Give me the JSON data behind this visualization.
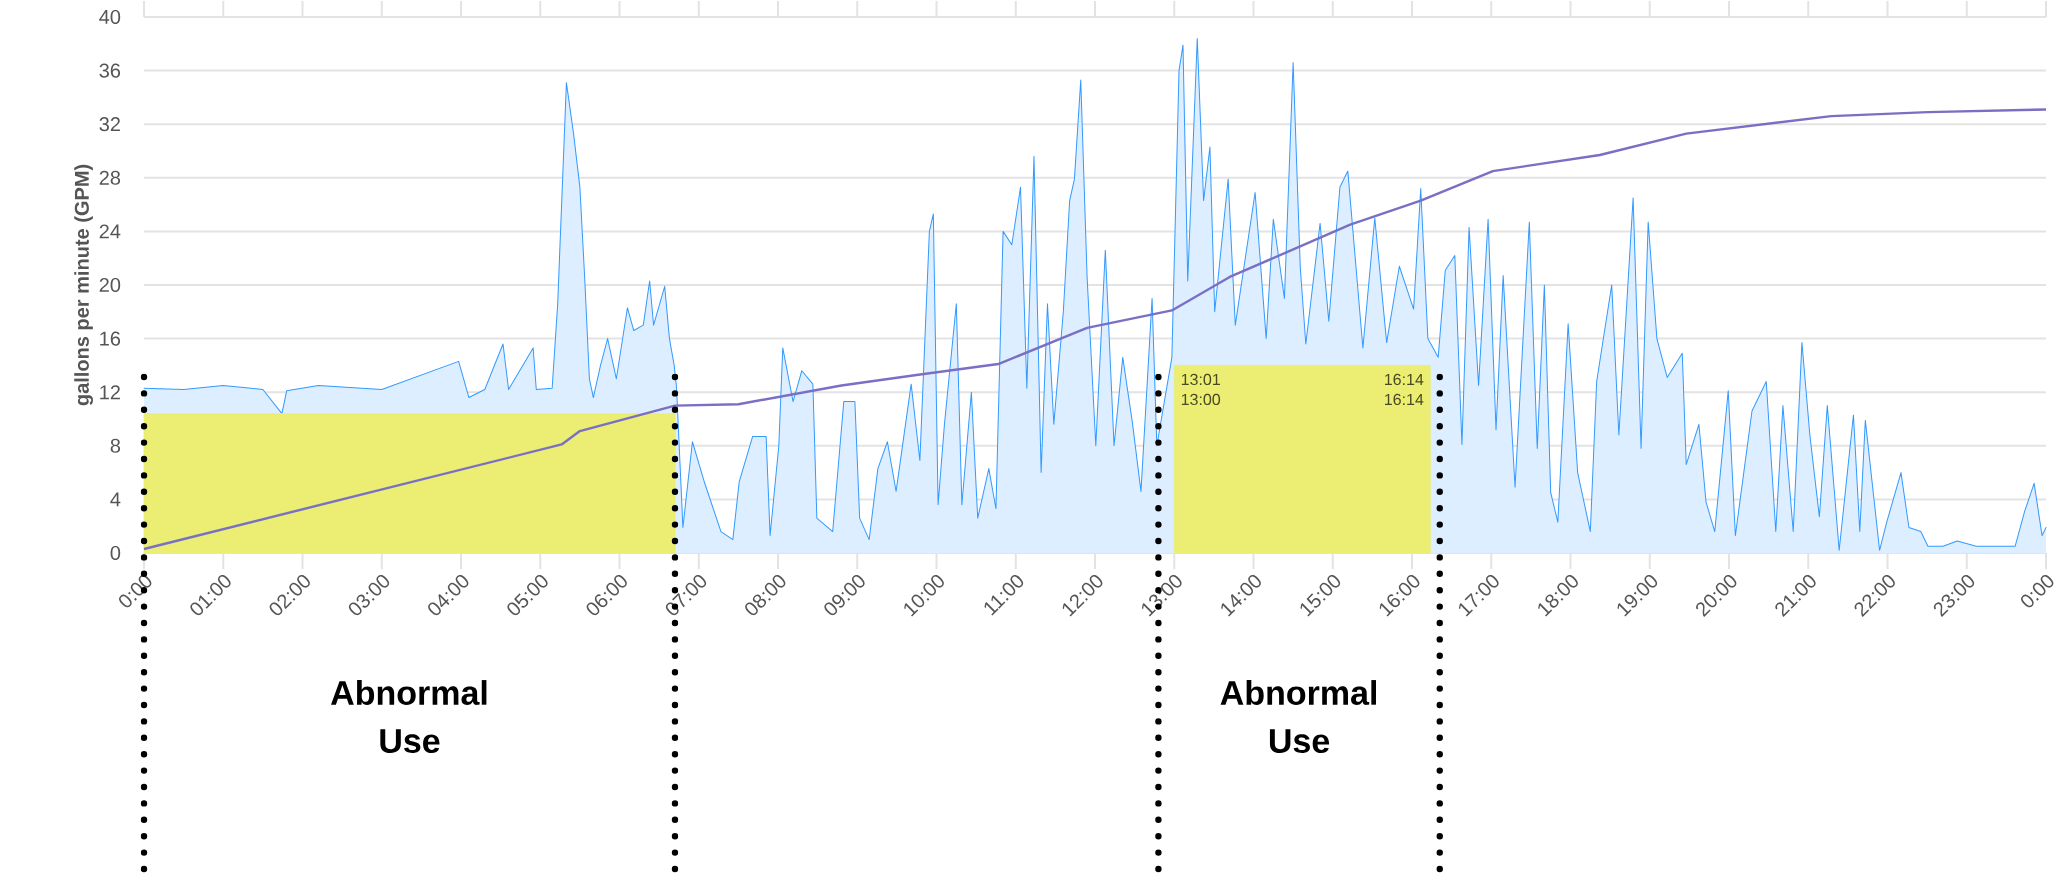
{
  "chart_data": {
    "type": "line",
    "ylabel": "gallons per minute (GPM)",
    "xlim": [
      0,
      24
    ],
    "ylim": [
      0,
      40
    ],
    "xticks": [
      {
        "value": 0,
        "label": "0:00"
      },
      {
        "value": 1,
        "label": "01:00"
      },
      {
        "value": 2,
        "label": "02:00"
      },
      {
        "value": 3,
        "label": "03:00"
      },
      {
        "value": 4,
        "label": "04:00"
      },
      {
        "value": 5,
        "label": "05:00"
      },
      {
        "value": 6,
        "label": "06:00"
      },
      {
        "value": 7,
        "label": "07:00"
      },
      {
        "value": 8,
        "label": "08:00"
      },
      {
        "value": 9,
        "label": "09:00"
      },
      {
        "value": 10,
        "label": "10:00"
      },
      {
        "value": 11,
        "label": "11:00"
      },
      {
        "value": 12,
        "label": "12:00"
      },
      {
        "value": 13,
        "label": "13:00"
      },
      {
        "value": 14,
        "label": "14:00"
      },
      {
        "value": 15,
        "label": "15:00"
      },
      {
        "value": 16,
        "label": "16:00"
      },
      {
        "value": 17,
        "label": "17:00"
      },
      {
        "value": 18,
        "label": "18:00"
      },
      {
        "value": 19,
        "label": "19:00"
      },
      {
        "value": 20,
        "label": "20:00"
      },
      {
        "value": 21,
        "label": "21:00"
      },
      {
        "value": 22,
        "label": "22:00"
      },
      {
        "value": 23,
        "label": "23:00"
      },
      {
        "value": 24,
        "label": "0:00"
      }
    ],
    "yticks": [
      0,
      4,
      8,
      12,
      16,
      20,
      24,
      28,
      32,
      36,
      40
    ],
    "grid": "y",
    "series": [
      {
        "type": "area",
        "color": "#3399ff",
        "x": [
          0,
          0.5,
          1,
          1.5,
          1.74,
          1.8,
          2.2,
          3,
          3.97,
          4.1,
          4.3,
          4.53,
          4.6,
          4.91,
          4.95,
          5.15,
          5.22,
          5.33,
          5.42,
          5.5,
          5.56,
          5.62,
          5.67,
          5.76,
          5.85,
          5.96,
          6.1,
          6.18,
          6.3,
          6.38,
          6.43,
          6.57,
          6.63,
          6.69,
          6.72,
          6.8,
          6.92,
          7.07,
          7.28,
          7.43,
          7.51,
          7.68,
          7.85,
          7.9,
          8.01,
          8.06,
          8.19,
          8.3,
          8.44,
          8.49,
          8.69,
          8.83,
          8.97,
          9.03,
          9.15,
          9.26,
          9.38,
          9.49,
          9.68,
          9.79,
          9.91,
          9.96,
          10.02,
          10.1,
          10.25,
          10.32,
          10.44,
          10.52,
          10.66,
          10.75,
          10.84,
          10.95,
          11.06,
          11.14,
          11.23,
          11.32,
          11.4,
          11.48,
          11.6,
          11.68,
          11.74,
          11.82,
          11.9,
          12.01,
          12.13,
          12.24,
          12.35,
          12.47,
          12.58,
          12.72,
          12.78,
          12.97,
          13.06,
          13.11,
          13.17,
          13.29,
          13.37,
          13.45,
          13.51,
          13.68,
          13.77,
          14.02,
          14.16,
          14.25,
          14.39,
          14.5,
          14.59,
          14.66,
          14.84,
          14.95,
          15.09,
          15.19,
          15.38,
          15.53,
          15.68,
          15.84,
          16.02,
          16.11,
          16.2,
          16.33,
          16.42,
          16.54,
          16.63,
          16.72,
          16.84,
          16.96,
          17.06,
          17.15,
          17.3,
          17.48,
          17.58,
          17.67,
          17.75,
          17.84,
          17.97,
          18.09,
          18.25,
          18.33,
          18.52,
          18.61,
          18.79,
          18.89,
          18.98,
          19.09,
          19.22,
          19.41,
          19.46,
          19.62,
          19.71,
          19.82,
          19.99,
          20.08,
          20.29,
          20.47,
          20.59,
          20.68,
          20.81,
          20.92,
          21.02,
          21.14,
          21.24,
          21.39,
          21.57,
          21.65,
          21.72,
          21.9,
          21.99,
          22.17,
          22.27,
          22.42,
          22.51,
          22.7,
          22.88,
          23.12,
          23.61,
          23.73,
          23.85,
          23.95,
          24
        ],
        "values": [
          12.3,
          12.2,
          12.5,
          12.2,
          10.4,
          12.1,
          12.5,
          12.2,
          14.3,
          11.6,
          12.2,
          15.6,
          12.2,
          15.3,
          12.2,
          12.3,
          18.6,
          35.1,
          31.3,
          27.3,
          20.6,
          13,
          11.6,
          14,
          16,
          13,
          18.3,
          16.6,
          17,
          20.3,
          17,
          19.9,
          16,
          14,
          12.3,
          1.9,
          8.3,
          5.3,
          1.6,
          1,
          5.3,
          8.7,
          8.7,
          1.3,
          8,
          15.3,
          11.3,
          13.6,
          12.6,
          2.6,
          1.6,
          11.3,
          11.3,
          2.6,
          1,
          6.3,
          8.3,
          4.6,
          12.6,
          6.9,
          24,
          25.3,
          3.6,
          9.6,
          18.6,
          3.6,
          12,
          2.6,
          6.3,
          3.3,
          24,
          23,
          27.3,
          12.3,
          29.6,
          6,
          18.6,
          9.6,
          18,
          26.3,
          27.9,
          35.3,
          20.6,
          8,
          22.6,
          8,
          14.6,
          9.8,
          4.6,
          19,
          8,
          14.6,
          36,
          37.9,
          20.3,
          38.4,
          26.3,
          30.3,
          18,
          27.9,
          17,
          26.9,
          16,
          24.9,
          19,
          36.6,
          21.3,
          15.6,
          24.6,
          17.3,
          27.3,
          28.5,
          15.3,
          25,
          15.7,
          21.4,
          18.2,
          27.2,
          16,
          14.6,
          21.1,
          22.2,
          8.1,
          24.3,
          12.5,
          24.9,
          9.2,
          20.7,
          4.9,
          24.7,
          7.8,
          20,
          4.5,
          2.3,
          17.1,
          6,
          1.6,
          12.8,
          20,
          8.8,
          26.5,
          7.8,
          24.7,
          16,
          13.1,
          14.9,
          6.6,
          9.6,
          3.8,
          1.6,
          12.1,
          1.3,
          10.6,
          12.8,
          1.6,
          11,
          1.6,
          15.7,
          8.8,
          2.7,
          11,
          0.2,
          10.3,
          1.6,
          9.9,
          0.2,
          2.3,
          6,
          1.9,
          1.6,
          0.5,
          0.5,
          0.9,
          0.5,
          0.5,
          3.1,
          5.2,
          1.3,
          1.9
        ]
      },
      {
        "type": "area",
        "color": "#ebee72",
        "x": [
          0,
          6.7
        ],
        "values": [
          10.4,
          10.4
        ]
      },
      {
        "type": "area",
        "color": "#ebee72",
        "x": [
          13.0,
          16.23
        ],
        "values": [
          14,
          14
        ]
      },
      {
        "type": "line",
        "color": "#7a6fc4",
        "x": [
          0,
          5.27,
          5.5,
          6.7,
          7.5,
          8.8,
          9.77,
          10.78,
          11.9,
          12.97,
          13.7,
          15.22,
          16.11,
          17.02,
          18.37,
          19.46,
          21.29,
          22.51,
          24
        ],
        "values": [
          0.3,
          8.1,
          9.1,
          11,
          11.1,
          12.5,
          13.3,
          14.1,
          16.8,
          18.1,
          20.6,
          24.5,
          26.3,
          28.5,
          29.7,
          31.3,
          32.6,
          32.9,
          33.1
        ]
      }
    ],
    "ref_lines": [
      {
        "axis": "x",
        "value": 0,
        "color": "#000000",
        "line_style": "dotted"
      },
      {
        "axis": "x",
        "value": 6.7,
        "color": "#000000",
        "line_style": "dotted"
      },
      {
        "axis": "x",
        "value": 12.8,
        "color": "#000000",
        "line_style": "dotted"
      },
      {
        "axis": "x",
        "value": 16.35,
        "color": "#000000",
        "line_style": "dotted"
      }
    ],
    "annotations": [
      "13:01",
      "13:00",
      "16:14",
      "16:14",
      "Abnormal Use",
      "Abnormal Use"
    ]
  }
}
